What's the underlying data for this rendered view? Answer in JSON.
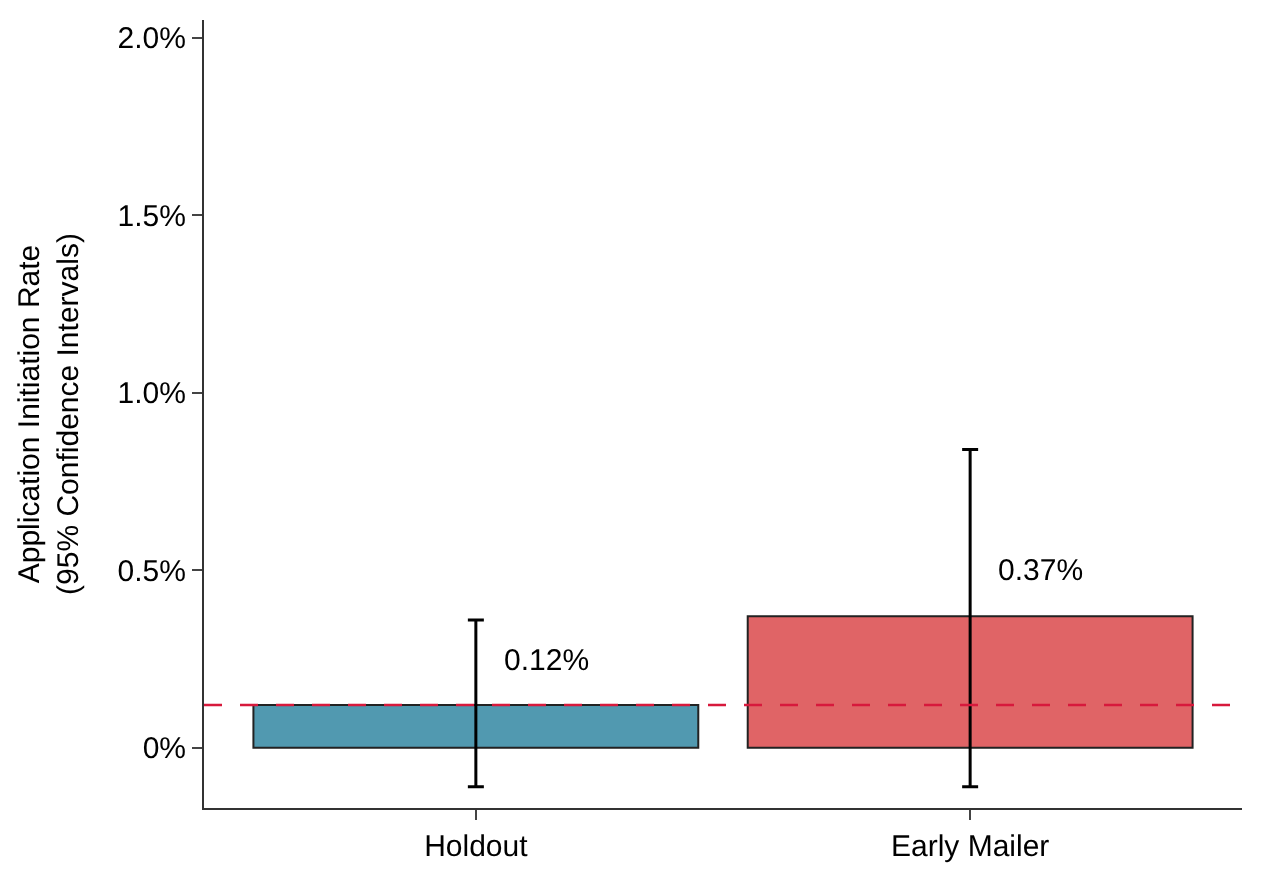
{
  "chart_data": {
    "type": "bar",
    "ylabel": "Application Initiation Rate\n(95% Confidence Intervals)",
    "categories": [
      "Holdout",
      "Early Mailer"
    ],
    "values": [
      0.12,
      0.37
    ],
    "colors": [
      "#5199b0",
      "#e06466"
    ],
    "errors": [
      [
        -0.11,
        0.36
      ],
      [
        -0.11,
        0.84
      ]
    ],
    "value_labels": [
      "0.12%",
      "0.37%"
    ],
    "ylim": [
      -0.17,
      2.05
    ],
    "yticks": [
      {
        "value": 0,
        "label": "0%"
      },
      {
        "value": 0.5,
        "label": "0.5%"
      },
      {
        "value": 1.0,
        "label": "1.0%"
      },
      {
        "value": 1.5,
        "label": "1.5%"
      },
      {
        "value": 2.0,
        "label": "2.0%"
      }
    ],
    "ref_lines": [
      {
        "axis": "y",
        "value": 0.12,
        "label": null,
        "color": "#d7193c",
        "line_style": "dashed"
      }
    ],
    "legend": false
  }
}
